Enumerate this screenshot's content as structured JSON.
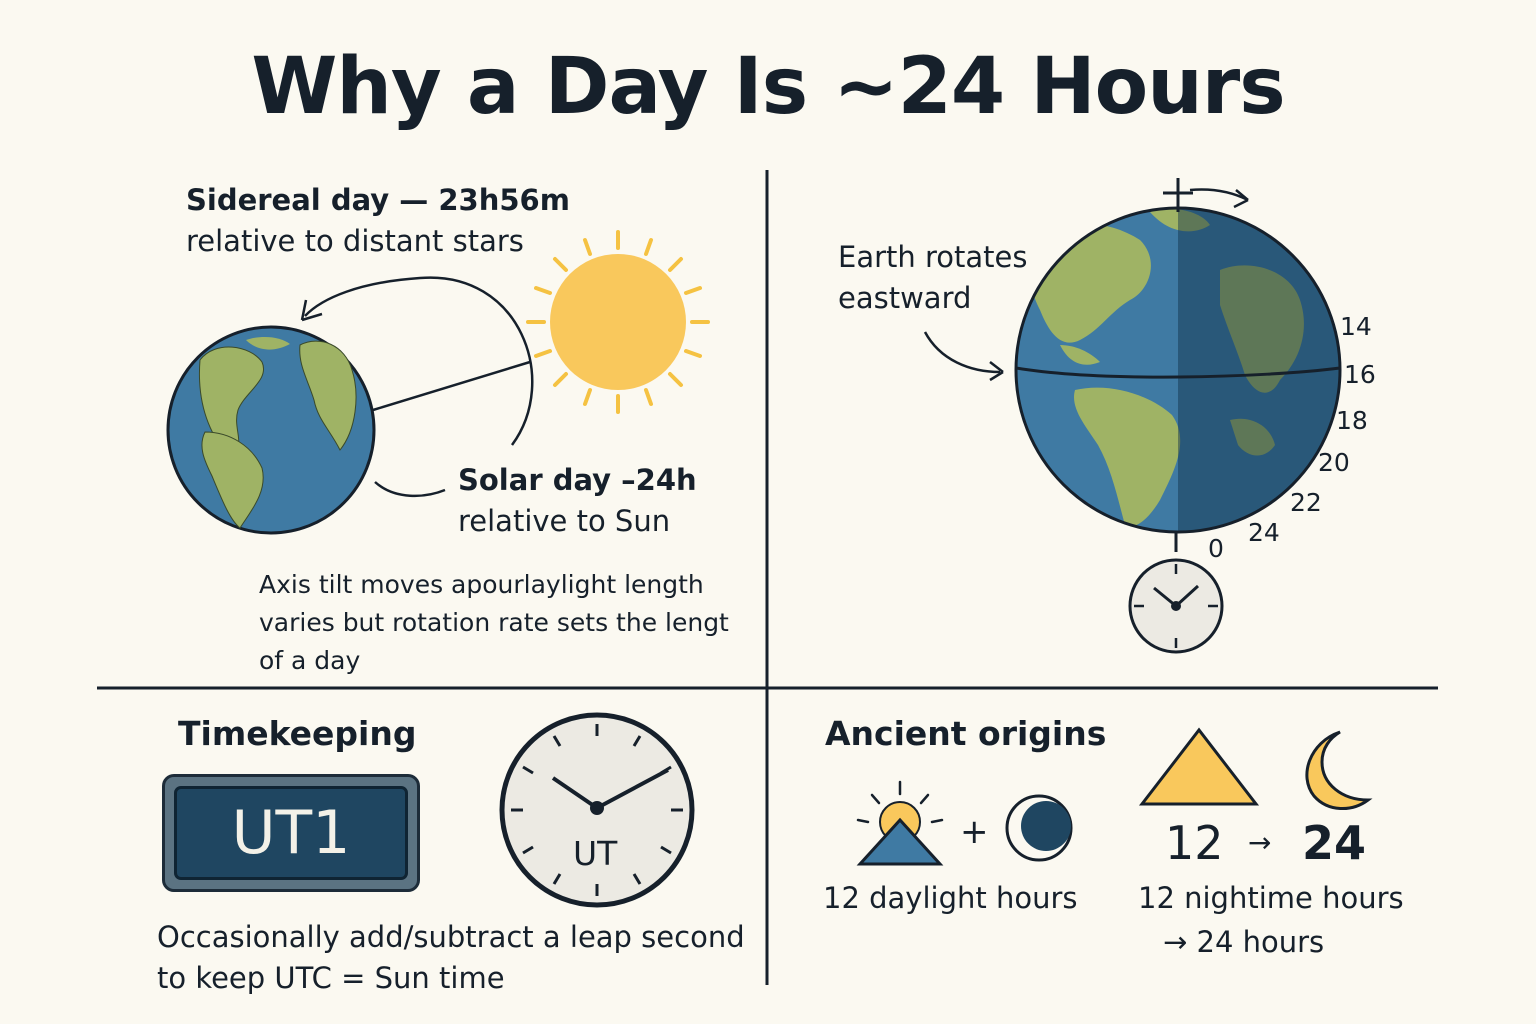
{
  "title": "Why a Day Is ~24 Hours",
  "sidereal": {
    "heading": "Sidereal day  — 23h56m",
    "sub": "relative to distant stars"
  },
  "solar": {
    "heading": "Solar day –24h",
    "sub": "relative to Sun"
  },
  "axis_note": [
    "Axis tilt moves apourlaylight length",
    "varies but rotation rate sets the lengt",
    "of a day"
  ],
  "rotation": {
    "label": [
      "Earth rotates",
      "eastward"
    ],
    "hour_ticks": [
      "14",
      "16",
      "18",
      "20",
      "22",
      "24",
      "0"
    ]
  },
  "timekeeping": {
    "heading": "Timekeeping",
    "display_label": "UT1",
    "clock_label": "UT",
    "note": [
      "Occasionally add/subtract a leap second",
      "to keep UTC = Sun time"
    ]
  },
  "ancient": {
    "heading": "Ancient origins",
    "plus": "+",
    "daylight_label": "12 daylight hours",
    "from_value": "12",
    "arrow": "→",
    "to_value": "24",
    "night_label": "12 nightime hours",
    "total_label": "→ 24 hours"
  },
  "colors": {
    "background": "#fbf9f1",
    "ocean": "#3f7aa3",
    "ocean_dark": "#21506f",
    "land": "#9fb365",
    "sun": "#f9c85c",
    "ink": "#16202b"
  }
}
